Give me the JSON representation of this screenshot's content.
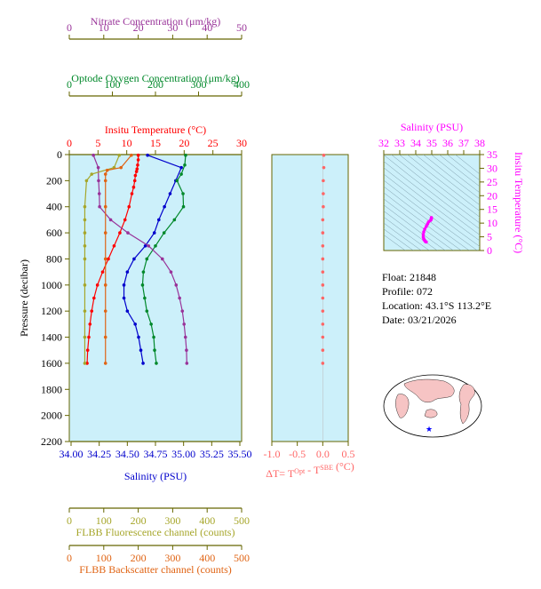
{
  "info": {
    "float": "Float:  21848",
    "profile": "Profile:  072",
    "location": "Location:  43.1°S  113.2°E",
    "date": "Date:  03/21/2026"
  },
  "colors": {
    "nitrate": "#993399",
    "oxygen": "#00882a",
    "temperature": "#ff0000",
    "salinity": "#0000cc",
    "fluorescence": "#a6a62a",
    "backscatter": "#e06414",
    "delta_t": "#ff6666",
    "ts": "#ff00ff",
    "panel_bg": "#ccf0fa",
    "axis": "#666600"
  },
  "chart_data": [
    {
      "type": "line",
      "ylabel": "Pressure (decibar)",
      "ylim": [
        2200,
        0
      ],
      "yticks": [
        0,
        200,
        400,
        600,
        800,
        1000,
        1200,
        1400,
        1600,
        1800,
        2000,
        2200
      ],
      "axes": [
        {
          "id": "nitrate",
          "label": "Nitrate Concentration (μm/kg)",
          "lim": [
            0,
            50
          ],
          "ticks": [
            0,
            10,
            20,
            30,
            40,
            50
          ]
        },
        {
          "id": "oxygen",
          "label": "Optode Oxygen Concentration (μm/kg)",
          "lim": [
            0,
            400
          ],
          "ticks": [
            0,
            100,
            200,
            300,
            400
          ]
        },
        {
          "id": "temperature",
          "label": "Insitu Temperature (°C)",
          "lim": [
            0,
            30
          ],
          "ticks": [
            0,
            5,
            10,
            15,
            20,
            25,
            30
          ]
        },
        {
          "id": "salinity",
          "label": "Salinity (PSU)",
          "lim": [
            34.0,
            35.5
          ],
          "ticks": [
            "34.00",
            "34.25",
            "34.50",
            "34.75",
            "35.00",
            "35.25",
            "35.50"
          ]
        },
        {
          "id": "fluorescence",
          "label": "FLBB Fluorescence channel (counts)",
          "lim": [
            0,
            500
          ],
          "ticks": [
            0,
            100,
            200,
            300,
            400,
            500
          ]
        },
        {
          "id": "backscatter",
          "label": "FLBB Backscatter channel (counts)",
          "lim": [
            0,
            500
          ],
          "ticks": [
            0,
            100,
            200,
            300,
            400,
            500
          ]
        }
      ],
      "series": [
        {
          "axis": "temperature",
          "pressure": [
            5,
            40,
            80,
            110,
            130,
            160,
            200,
            250,
            300,
            400,
            500,
            600,
            700,
            800,
            900,
            1000,
            1100,
            1200,
            1300,
            1400,
            1500,
            1600
          ],
          "values": [
            12.0,
            12.0,
            11.9,
            11.8,
            11.7,
            11.5,
            11.4,
            11.2,
            10.9,
            10.4,
            9.7,
            8.8,
            7.8,
            6.8,
            5.8,
            4.9,
            4.3,
            3.9,
            3.6,
            3.4,
            3.2,
            3.1
          ]
        },
        {
          "axis": "salinity",
          "pressure": [
            5,
            100,
            200,
            300,
            400,
            500,
            600,
            700,
            800,
            900,
            1000,
            1100,
            1200,
            1300,
            1400,
            1500,
            1600
          ],
          "values": [
            34.68,
            34.98,
            34.93,
            34.88,
            34.83,
            34.78,
            34.74,
            34.66,
            34.56,
            34.5,
            34.47,
            34.47,
            34.5,
            34.57,
            34.6,
            34.62,
            34.64
          ]
        },
        {
          "axis": "oxygen",
          "pressure": [
            5,
            80,
            150,
            200,
            300,
            400,
            500,
            600,
            700,
            800,
            900,
            1000,
            1100,
            1200,
            1300,
            1400,
            1500,
            1600
          ],
          "values": [
            270,
            268,
            260,
            250,
            264,
            265,
            244,
            220,
            200,
            180,
            172,
            170,
            175,
            180,
            190,
            196,
            198,
            202
          ]
        },
        {
          "axis": "nitrate",
          "pressure": [
            5,
            100,
            200,
            300,
            400,
            500,
            600,
            700,
            800,
            900,
            1000,
            1100,
            1200,
            1300,
            1400,
            1500,
            1600
          ],
          "values": [
            7,
            8.4,
            8.5,
            8.7,
            8.8,
            12,
            17,
            23,
            27,
            29.5,
            31,
            32,
            32.8,
            33.3,
            33.7,
            34,
            34.1
          ]
        },
        {
          "axis": "fluorescence",
          "pressure": [
            5,
            100,
            150,
            200,
            400,
            500,
            600,
            700,
            800,
            1000,
            1200,
            1400,
            1600
          ],
          "values": [
            145,
            130,
            65,
            50,
            45,
            45,
            45,
            45,
            45,
            45,
            45,
            45,
            45
          ]
        },
        {
          "axis": "backscatter",
          "pressure": [
            5,
            100,
            120,
            150,
            200,
            400,
            600,
            800,
            1000,
            1200,
            1400,
            1600
          ],
          "values": [
            180,
            150,
            110,
            105,
            105,
            105,
            105,
            105,
            105,
            105,
            105,
            105
          ]
        }
      ]
    },
    {
      "type": "scatter",
      "xlabel": "ΔT= T^Opt - T^SBE (°C)",
      "xlim": [
        -1.0,
        0.5
      ],
      "xticks": [
        "-1.0",
        "-0.5",
        "0.0",
        "0.5"
      ],
      "ylim": [
        2200,
        0
      ],
      "x": [
        0.02,
        0.02,
        0.01,
        0.01,
        0.01,
        0.0,
        0.0,
        0.0,
        0.0,
        0.0,
        0.0,
        0.0,
        0.0,
        0.0,
        0.0,
        0.0,
        0.0
      ],
      "y": [
        5,
        100,
        200,
        300,
        400,
        500,
        600,
        700,
        800,
        900,
        1000,
        1100,
        1200,
        1300,
        1400,
        1500,
        1600
      ]
    },
    {
      "type": "scatter",
      "title": "Salinity (PSU)",
      "xlabel": "Salinity (PSU)",
      "ylabel": "Insitu Temperature (°C)",
      "xlim": [
        32,
        38
      ],
      "xticks": [
        32,
        33,
        34,
        35,
        36,
        37,
        38
      ],
      "ylim": [
        0,
        35
      ],
      "yticks": [
        0,
        5,
        10,
        15,
        20,
        25,
        30,
        35
      ],
      "x": [
        34.66,
        34.6,
        34.58,
        34.52,
        34.5,
        34.47,
        34.47,
        34.5,
        34.56,
        34.66,
        34.74,
        34.8,
        34.9,
        34.95,
        34.97,
        34.98,
        34.98
      ],
      "y": [
        3.1,
        3.3,
        3.6,
        3.9,
        4.3,
        4.9,
        5.8,
        6.8,
        7.8,
        8.8,
        9.7,
        10.4,
        10.9,
        11.2,
        11.5,
        11.8,
        12.0
      ]
    }
  ]
}
